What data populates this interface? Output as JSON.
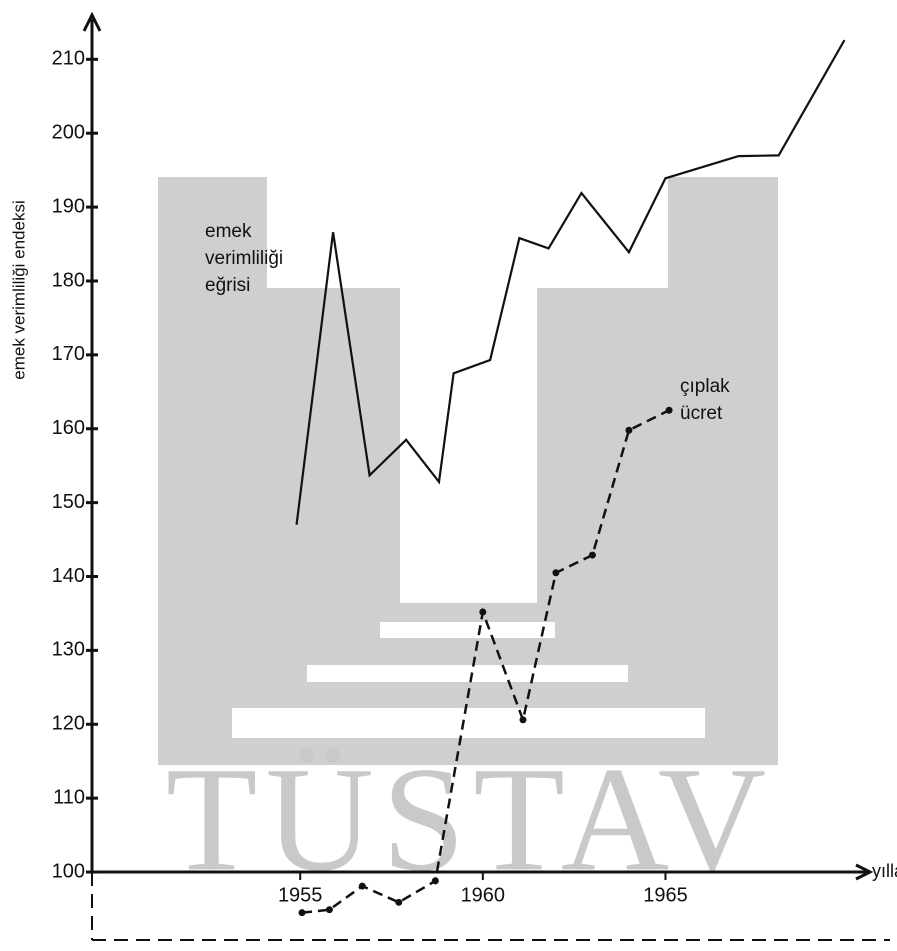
{
  "chart_data": {
    "type": "line",
    "y_label": "emek verimliliği endeksi",
    "x_label": "yıllar",
    "watermark": "TÜSTAV",
    "xlim": [
      1949.3,
      1970.6
    ],
    "xticks": [
      1955,
      1960,
      1965
    ],
    "ylim": [
      90.8,
      216
    ],
    "yticks": [
      100,
      110,
      120,
      130,
      140,
      150,
      160,
      170,
      180,
      190,
      200,
      210
    ],
    "series": [
      {
        "color": "#111111",
        "style": "solid",
        "x": [
          1954.9,
          1955.9,
          1956.9,
          1957.9,
          1958.8,
          1959.2,
          1960.2,
          1961.0,
          1961.8,
          1962.7,
          1964.0,
          1965.0,
          1967.0,
          1968.1,
          1969.9
        ],
        "values": [
          147.0,
          186.6,
          153.7,
          158.5,
          152.8,
          167.5,
          169.3,
          185.8,
          184.4,
          191.9,
          183.9,
          193.9,
          196.9,
          197.0,
          212.6
        ]
      },
      {
        "color": "#111111",
        "style": "dashed",
        "x": [
          1955.05,
          1955.8,
          1956.7,
          1957.7,
          1958.7,
          1960.0,
          1961.1,
          1962.0,
          1963.0,
          1964.0,
          1965.1
        ],
        "values": [
          94.5,
          94.9,
          98.1,
          95.9,
          98.8,
          135.2,
          120.6,
          140.5,
          142.9,
          159.8,
          162.5
        ]
      }
    ],
    "annotations": [
      {
        "lines": [
          "emek",
          "verimliliği",
          "eğrisi"
        ]
      },
      {
        "lines": [
          "çıplak",
          "ücret"
        ]
      }
    ]
  }
}
